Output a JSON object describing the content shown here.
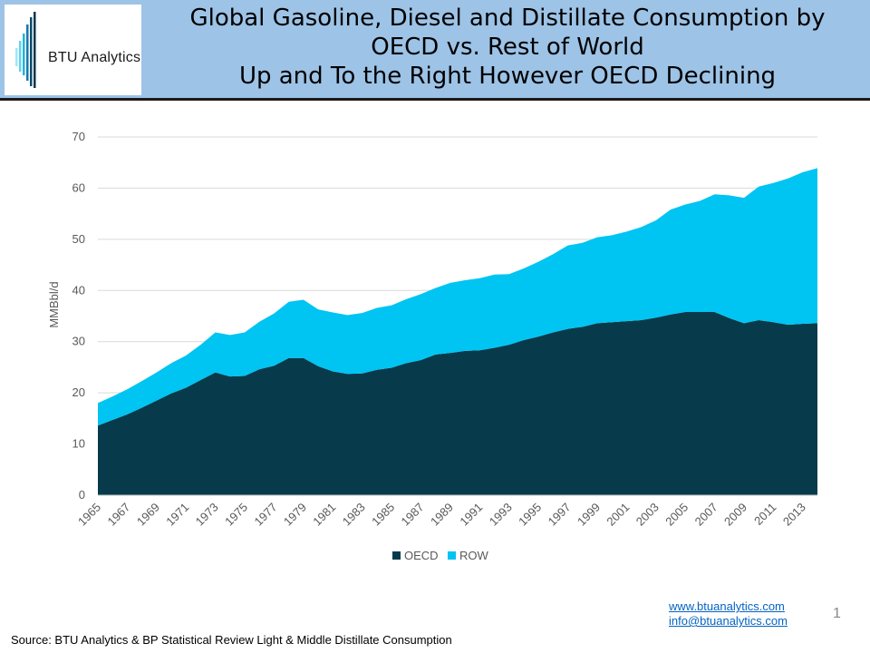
{
  "header": {
    "logo_text": "BTU Analytics",
    "title_lines": [
      "Global Gasoline, Diesel and Distillate Consumption by",
      "OECD vs. Rest of World",
      "Up and To the Right However OECD Declining"
    ]
  },
  "colors": {
    "oecd": "#073b4c",
    "row": "#00c4f2",
    "header_bg": "#9dc3e6"
  },
  "chart_data": {
    "type": "area",
    "stacked": true,
    "title": "",
    "xlabel": "",
    "ylabel": "MMBbl/d",
    "ylim": [
      0,
      70
    ],
    "yticks": [
      0,
      10,
      20,
      30,
      40,
      50,
      60,
      70
    ],
    "grid": true,
    "legend_position": "bottom",
    "x": [
      1965,
      1966,
      1967,
      1968,
      1969,
      1970,
      1971,
      1972,
      1973,
      1974,
      1975,
      1976,
      1977,
      1978,
      1979,
      1980,
      1981,
      1982,
      1983,
      1984,
      1985,
      1986,
      1987,
      1988,
      1989,
      1990,
      1991,
      1992,
      1993,
      1994,
      1995,
      1996,
      1997,
      1998,
      1999,
      2000,
      2001,
      2002,
      2003,
      2004,
      2005,
      2006,
      2007,
      2008,
      2009,
      2010,
      2011,
      2012,
      2013,
      2014
    ],
    "tick_labels": [
      "1965",
      "1967",
      "1969",
      "1971",
      "1973",
      "1975",
      "1977",
      "1979",
      "1981",
      "1983",
      "1985",
      "1987",
      "1989",
      "1991",
      "1993",
      "1995",
      "1997",
      "1999",
      "2001",
      "2003",
      "2005",
      "2007",
      "2009",
      "2011",
      "2013"
    ],
    "series": [
      {
        "name": "OECD",
        "values": [
          13.6,
          14.7,
          15.8,
          17.1,
          18.5,
          19.9,
          21.0,
          22.5,
          24.0,
          23.2,
          23.3,
          24.6,
          25.3,
          26.8,
          26.8,
          25.2,
          24.2,
          23.7,
          23.8,
          24.5,
          24.9,
          25.8,
          26.4,
          27.5,
          27.8,
          28.2,
          28.3,
          28.8,
          29.4,
          30.3,
          31.0,
          31.8,
          32.5,
          32.9,
          33.6,
          33.8,
          34.0,
          34.2,
          34.7,
          35.3,
          35.8,
          35.8,
          35.8,
          34.6,
          33.6,
          34.2,
          33.8,
          33.3,
          33.5,
          33.6
        ]
      },
      {
        "name": "ROW",
        "values": [
          4.4,
          4.6,
          4.9,
          5.2,
          5.5,
          5.9,
          6.3,
          6.9,
          7.8,
          8.1,
          8.5,
          9.3,
          10.2,
          11.0,
          11.4,
          11.1,
          11.5,
          11.5,
          11.8,
          12.1,
          12.2,
          12.5,
          12.9,
          13.0,
          13.7,
          13.8,
          14.1,
          14.3,
          13.8,
          14.0,
          14.6,
          15.3,
          16.3,
          16.4,
          16.8,
          17.0,
          17.5,
          18.2,
          19.0,
          20.5,
          21.0,
          21.7,
          23.0,
          24.0,
          24.5,
          26.1,
          27.2,
          28.6,
          29.6,
          30.3
        ]
      }
    ]
  },
  "footer": {
    "link1": "www.btuanalytics.com",
    "link2": "info@btuanalytics.com",
    "page_number": "1",
    "source": "Source:  BTU Analytics & BP Statistical Review Light & Middle Distillate Consumption"
  }
}
